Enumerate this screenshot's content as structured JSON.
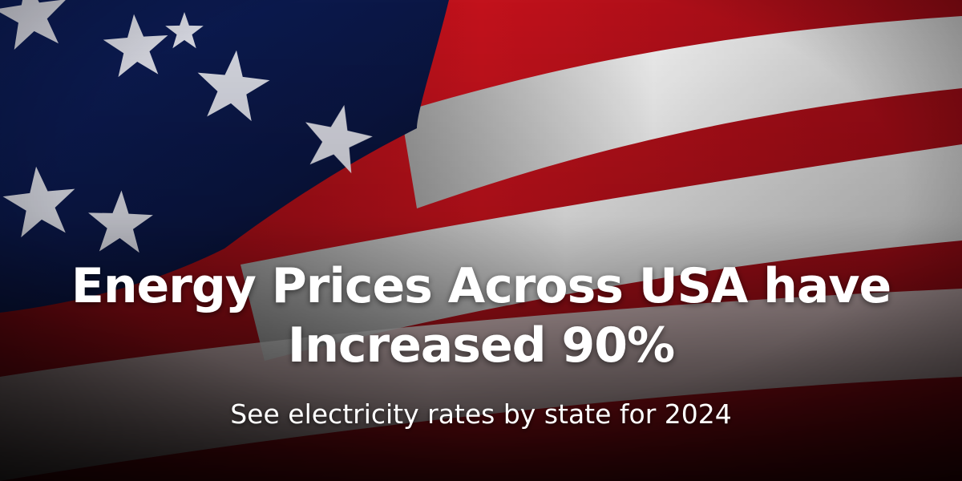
{
  "headline": {
    "line1": "Energy Prices Across USA have",
    "line2": "Increased 90%"
  },
  "subheadline": "See electricity rates by state for 2024",
  "background": {
    "icon": "american-flag",
    "colors": {
      "canton_blue": "#0b1a4a",
      "stripe_red": "#b0101a",
      "stripe_white": "#e6e6e6"
    }
  }
}
